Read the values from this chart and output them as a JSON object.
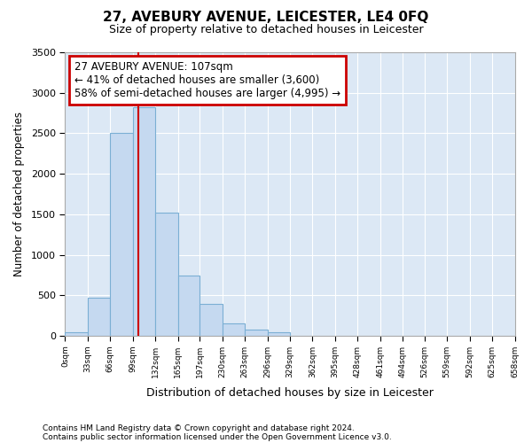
{
  "title": "27, AVEBURY AVENUE, LEICESTER, LE4 0FQ",
  "subtitle": "Size of property relative to detached houses in Leicester",
  "xlabel": "Distribution of detached houses by size in Leicester",
  "ylabel": "Number of detached properties",
  "bar_color": "#c5d9f0",
  "bar_edge_color": "#7bafd4",
  "plot_bg_color": "#dce8f5",
  "fig_bg_color": "#ffffff",
  "grid_color": "#ffffff",
  "bin_edges": [
    0,
    33,
    66,
    99,
    132,
    165,
    197,
    230,
    263,
    296,
    329,
    362,
    395,
    428,
    461,
    494,
    526,
    559,
    592,
    625,
    658
  ],
  "bar_heights": [
    50,
    475,
    2500,
    2825,
    1525,
    750,
    400,
    150,
    75,
    50,
    0,
    0,
    0,
    0,
    0,
    0,
    0,
    0,
    0,
    0
  ],
  "property_size": 107,
  "vline_color": "#cc0000",
  "annotation_line1": "27 AVEBURY AVENUE: 107sqm",
  "annotation_line2": "← 41% of detached houses are smaller (3,600)",
  "annotation_line3": "58% of semi-detached houses are larger (4,995) →",
  "annotation_box_color": "#cc0000",
  "ylim": [
    0,
    3500
  ],
  "yticks": [
    0,
    500,
    1000,
    1500,
    2000,
    2500,
    3000,
    3500
  ],
  "footnote1": "Contains HM Land Registry data © Crown copyright and database right 2024.",
  "footnote2": "Contains public sector information licensed under the Open Government Licence v3.0.",
  "tick_labels": [
    "0sqm",
    "33sqm",
    "66sqm",
    "99sqm",
    "132sqm",
    "165sqm",
    "197sqm",
    "230sqm",
    "263sqm",
    "296sqm",
    "329sqm",
    "362sqm",
    "395sqm",
    "428sqm",
    "461sqm",
    "494sqm",
    "526sqm",
    "559sqm",
    "592sqm",
    "625sqm",
    "658sqm"
  ]
}
